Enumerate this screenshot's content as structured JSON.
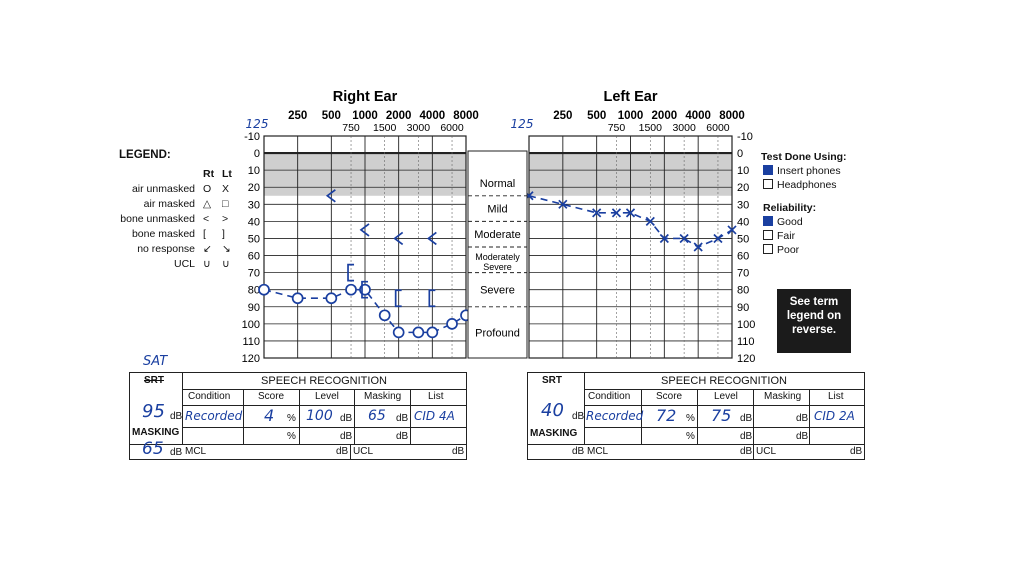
{
  "legend": {
    "title": "LEGEND:",
    "col_rt": "Rt",
    "col_lt": "Lt",
    "rows": [
      {
        "label": "air unmasked",
        "rt": "O",
        "lt": "X"
      },
      {
        "label": "air masked",
        "rt": "△",
        "lt": "□"
      },
      {
        "label": "bone unmasked",
        "rt": "<",
        "lt": ">"
      },
      {
        "label": "bone masked",
        "rt": "[",
        "lt": "]"
      },
      {
        "label": "no response",
        "rt": "↙",
        "lt": "↘"
      },
      {
        "label": "UCL",
        "rt": "∪",
        "lt": "∪"
      }
    ]
  },
  "test_done": {
    "title": "Test Done Using:",
    "options": [
      {
        "label": "Insert phones",
        "checked": true
      },
      {
        "label": "Headphones",
        "checked": false
      }
    ]
  },
  "reliability": {
    "title": "Reliability:",
    "options": [
      {
        "label": "Good",
        "checked": true
      },
      {
        "label": "Fair",
        "checked": false
      },
      {
        "label": "Poor",
        "checked": false
      }
    ]
  },
  "reference_note": "See term legend on reverse.",
  "severity_bands": [
    "Normal",
    "Mild",
    "Moderate",
    "Moderately Severe",
    "Severe",
    "Profound"
  ],
  "chart_data": [
    {
      "type": "line",
      "title": "Right Ear",
      "ear": "right",
      "handwritten_start_freq": "125",
      "x_octave_ticks": [
        "250",
        "500",
        "1000",
        "2000",
        "4000",
        "8000"
      ],
      "x_interoctave_ticks": [
        "750",
        "1500",
        "3000",
        "6000"
      ],
      "y_ticks": [
        "-10",
        "0",
        "10",
        "20",
        "30",
        "40",
        "50",
        "60",
        "70",
        "80",
        "90",
        "100",
        "110",
        "120"
      ],
      "ylim": [
        -10,
        120
      ],
      "y_inverted": true,
      "grid": true,
      "normal_shading_db": [
        0,
        25
      ],
      "color": "#1a3fa0",
      "series": [
        {
          "name": "air unmasked",
          "symbol": "O",
          "connected": true,
          "points": [
            {
              "x": 125,
              "y": 80
            },
            {
              "x": 250,
              "y": 85
            },
            {
              "x": 500,
              "y": 85
            },
            {
              "x": 750,
              "y": 80
            },
            {
              "x": 1000,
              "y": 80
            },
            {
              "x": 1500,
              "y": 95
            },
            {
              "x": 2000,
              "y": 105
            },
            {
              "x": 3000,
              "y": 105
            },
            {
              "x": 4000,
              "y": 105
            },
            {
              "x": 6000,
              "y": 100
            },
            {
              "x": 8000,
              "y": 95
            }
          ]
        },
        {
          "name": "bone unmasked",
          "symbol": "<",
          "connected": false,
          "points": [
            {
              "x": 500,
              "y": 25
            },
            {
              "x": 1000,
              "y": 45
            },
            {
              "x": 2000,
              "y": 50
            },
            {
              "x": 4000,
              "y": 50
            }
          ]
        },
        {
          "name": "bone masked",
          "symbol": "[",
          "connected": false,
          "points": [
            {
              "x": 750,
              "y": 70
            },
            {
              "x": 1000,
              "y": 80
            },
            {
              "x": 2000,
              "y": 85
            },
            {
              "x": 4000,
              "y": 85
            }
          ]
        }
      ]
    },
    {
      "type": "line",
      "title": "Left Ear",
      "ear": "left",
      "handwritten_start_freq": "125",
      "x_octave_ticks": [
        "250",
        "500",
        "1000",
        "2000",
        "4000",
        "8000"
      ],
      "x_interoctave_ticks": [
        "750",
        "1500",
        "3000",
        "6000"
      ],
      "y_ticks": [
        "-10",
        "0",
        "10",
        "20",
        "30",
        "40",
        "50",
        "60",
        "70",
        "80",
        "90",
        "100",
        "110",
        "120"
      ],
      "ylim": [
        -10,
        120
      ],
      "y_inverted": true,
      "grid": true,
      "normal_shading_db": [
        0,
        25
      ],
      "color": "#1a3fa0",
      "series": [
        {
          "name": "air unmasked",
          "symbol": "X",
          "connected": true,
          "points": [
            {
              "x": 125,
              "y": 25
            },
            {
              "x": 250,
              "y": 30
            },
            {
              "x": 500,
              "y": 35
            },
            {
              "x": 750,
              "y": 35
            },
            {
              "x": 1000,
              "y": 35
            },
            {
              "x": 1500,
              "y": 40
            },
            {
              "x": 2000,
              "y": 50
            },
            {
              "x": 3000,
              "y": 50
            },
            {
              "x": 4000,
              "y": 55
            },
            {
              "x": 6000,
              "y": 50
            },
            {
              "x": 8000,
              "y": 45
            }
          ]
        }
      ]
    }
  ],
  "speech_right": {
    "srt_printed": "SRT",
    "srt_handwritten": "SAT",
    "header": "SPEECH RECOGNITION",
    "columns": [
      "Condition",
      "Score",
      "Level",
      "Masking",
      "List"
    ],
    "srt_value": "95",
    "unit_db": "dB",
    "unit_pct": "%",
    "masking_label": "MASKING",
    "masking_value": "65",
    "condition": "Recorded",
    "score": "4",
    "level": "100",
    "masking": "65",
    "list": "CID 4A",
    "mcl_label": "MCL",
    "ucl_label": "UCL"
  },
  "speech_left": {
    "srt_printed": "SRT",
    "header": "SPEECH RECOGNITION",
    "columns": [
      "Condition",
      "Score",
      "Level",
      "Masking",
      "List"
    ],
    "srt_value": "40",
    "unit_db": "dB",
    "unit_pct": "%",
    "masking_label": "MASKING",
    "condition": "Recorded",
    "score": "72",
    "level": "75",
    "list": "CID 2A",
    "mcl_label": "MCL",
    "ucl_label": "UCL"
  }
}
